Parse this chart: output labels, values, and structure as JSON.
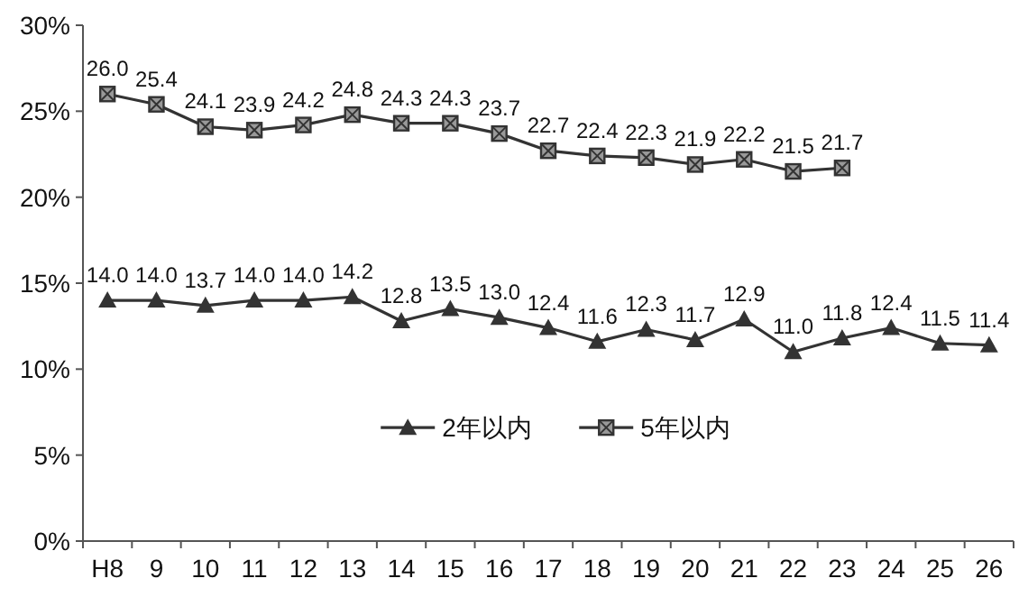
{
  "chart_data": {
    "type": "line",
    "categories": [
      "H8",
      "9",
      "10",
      "11",
      "12",
      "13",
      "14",
      "15",
      "16",
      "17",
      "18",
      "19",
      "20",
      "21",
      "22",
      "23",
      "24",
      "25",
      "26"
    ],
    "series": [
      {
        "name": "2年以内",
        "color": "#333333",
        "marker": "triangle",
        "values": [
          14.0,
          14.0,
          13.7,
          14.0,
          14.0,
          14.2,
          12.8,
          13.5,
          13.0,
          12.4,
          11.6,
          12.3,
          11.7,
          12.9,
          11.0,
          11.8,
          12.4,
          11.5,
          11.4
        ],
        "value_labels": [
          "14.0",
          "14.0",
          "13.7",
          "14.0",
          "14.0",
          "14.2",
          "12.8",
          "13.5",
          "13.0",
          "12.4",
          "11.6",
          "12.3",
          "11.7",
          "12.9",
          "11.0",
          "11.8",
          "12.4",
          "11.5",
          "11.4"
        ]
      },
      {
        "name": "5年以内",
        "color": "#333333",
        "marker": "square",
        "values": [
          26.0,
          25.4,
          24.1,
          23.9,
          24.2,
          24.8,
          24.3,
          24.3,
          23.7,
          22.7,
          22.4,
          22.3,
          21.9,
          22.2,
          21.5,
          21.7,
          null,
          null,
          null
        ],
        "value_labels": [
          "26.0",
          "25.4",
          "24.1",
          "23.9",
          "24.2",
          "24.8",
          "24.3",
          "24.3",
          "23.7",
          "22.7",
          "22.4",
          "22.3",
          "21.9",
          "22.2",
          "21.5",
          "21.7",
          null,
          null,
          null
        ]
      }
    ],
    "ylim": [
      0,
      30
    ],
    "yticks": [
      {
        "value": 0,
        "label": "0%"
      },
      {
        "value": 5,
        "label": "5%"
      },
      {
        "value": 10,
        "label": "10%"
      },
      {
        "value": 15,
        "label": "15%"
      },
      {
        "value": 20,
        "label": "20%"
      },
      {
        "value": 25,
        "label": "25%"
      },
      {
        "value": 30,
        "label": "30%"
      }
    ],
    "grid": false,
    "legend": "bottom",
    "line_style": "solid"
  }
}
